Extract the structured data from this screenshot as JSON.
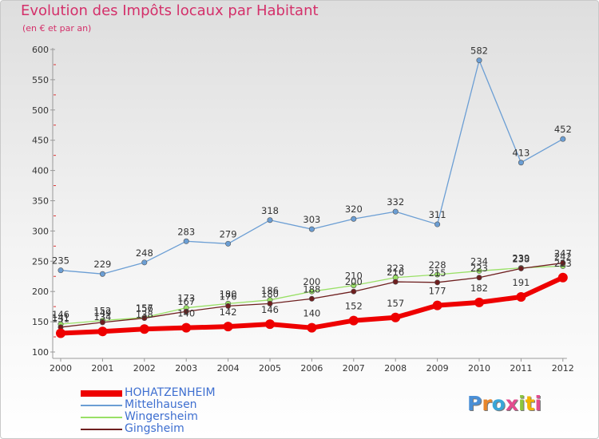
{
  "title": "Evolution des Impôts locaux par Habitant",
  "subtitle": "(en € et par an)",
  "logo_text": "Proxiti",
  "chart_data": {
    "type": "line",
    "title": "Evolution des Impôts locaux par Habitant",
    "subtitle": "(en € et par an)",
    "xlabel": "",
    "ylabel": "",
    "categories": [
      "2000",
      "2001",
      "2002",
      "2003",
      "2004",
      "2005",
      "2006",
      "2007",
      "2008",
      "2009",
      "2010",
      "2011",
      "2012"
    ],
    "ylim": [
      100,
      600
    ],
    "yticks": [
      100,
      150,
      200,
      250,
      300,
      350,
      400,
      450,
      500,
      550,
      600
    ],
    "grid": false,
    "legend_position": "bottom-left",
    "series": [
      {
        "name": "HOHATZENHEIM",
        "color": "#ee0000",
        "values": [
          131,
          134,
          138,
          140,
          142,
          146,
          140,
          152,
          157,
          177,
          182,
          191,
          223
        ]
      },
      {
        "name": "Mittelhausen",
        "color": "#6b9ed4",
        "values": [
          235,
          229,
          248,
          283,
          279,
          318,
          303,
          320,
          332,
          311,
          582,
          413,
          452
        ]
      },
      {
        "name": "Wingersheim",
        "color": "#99e066",
        "values": [
          146,
          152,
          157,
          173,
          180,
          186,
          200,
          210,
          223,
          228,
          234,
          239,
          242
        ]
      },
      {
        "name": "Gingsheim",
        "color": "#6e1f1f",
        "values": [
          141,
          149,
          156,
          167,
          176,
          180,
          188,
          200,
          216,
          215,
          223,
          238,
          247
        ]
      }
    ]
  }
}
